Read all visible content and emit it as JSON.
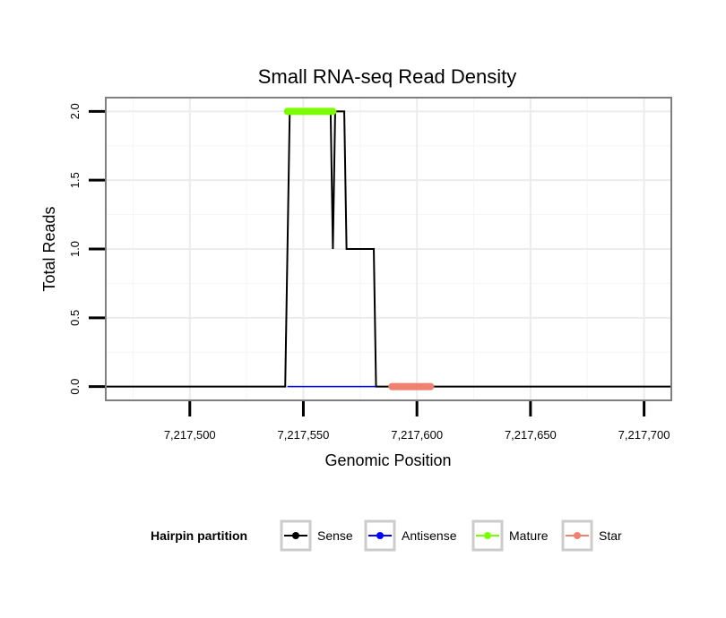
{
  "chart_data": {
    "type": "line",
    "title": "Small RNA-seq Read Density",
    "xlabel": "Genomic Position",
    "ylabel": "Total Reads",
    "xlim": [
      7217463,
      7217712
    ],
    "ylim": [
      -0.1,
      2.1
    ],
    "x_ticks": [
      {
        "value": 7217500,
        "label": "7,217,500"
      },
      {
        "value": 7217550,
        "label": "7,217,550"
      },
      {
        "value": 7217600,
        "label": "7,217,600"
      },
      {
        "value": 7217650,
        "label": "7,217,650"
      },
      {
        "value": 7217700,
        "label": "7,217,700"
      }
    ],
    "y_ticks": [
      {
        "value": 0.0,
        "label": "0.0"
      },
      {
        "value": 0.5,
        "label": "0.5"
      },
      {
        "value": 1.0,
        "label": "1.0"
      },
      {
        "value": 1.5,
        "label": "1.5"
      },
      {
        "value": 2.0,
        "label": "2.0"
      }
    ],
    "grid": true,
    "legend": {
      "title": "Hairpin partition",
      "position": "bottom",
      "entries": [
        {
          "name": "Sense",
          "color": "#000000"
        },
        {
          "name": "Antisense",
          "color": "#0000ff"
        },
        {
          "name": "Mature",
          "color": "#7cfc00"
        },
        {
          "name": "Star",
          "color": "#f08070"
        }
      ]
    },
    "series": [
      {
        "name": "Sense",
        "color": "#000000",
        "x": [
          7217463,
          7217542,
          7217544,
          7217562,
          7217563,
          7217564,
          7217565,
          7217568,
          7217569,
          7217581,
          7217582,
          7217712
        ],
        "y": [
          0,
          0,
          2,
          2,
          1,
          2,
          2,
          2,
          1,
          1,
          0,
          0
        ]
      },
      {
        "name": "Antisense",
        "color": "#0000ff",
        "x": [
          7217543,
          7217582
        ],
        "y": [
          0,
          0
        ]
      },
      {
        "name": "Mature",
        "color": "#7cfc00",
        "x": [
          7217543,
          7217563
        ],
        "y": [
          2,
          2
        ]
      },
      {
        "name": "Star",
        "color": "#f08070",
        "x": [
          7217589,
          7217606
        ],
        "y": [
          0,
          0
        ]
      }
    ]
  }
}
